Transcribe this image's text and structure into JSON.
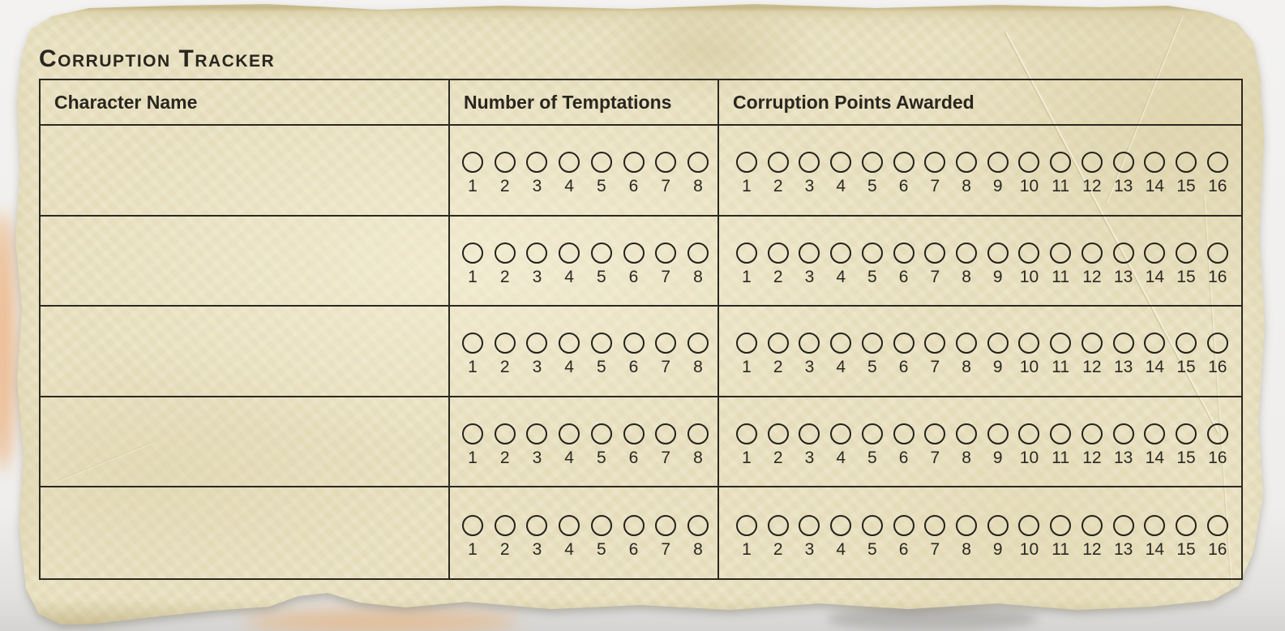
{
  "page": {
    "title": "Corruption Tracker"
  },
  "table": {
    "headers": {
      "character_name": "Character Name",
      "temptations": "Number of Temptations",
      "corruption_points": "Corruption Points Awarded"
    },
    "temptation_scale": [
      "1",
      "2",
      "3",
      "4",
      "5",
      "6",
      "7",
      "8"
    ],
    "corruption_scale": [
      "1",
      "2",
      "3",
      "4",
      "5",
      "6",
      "7",
      "8",
      "9",
      "10",
      "11",
      "12",
      "13",
      "14",
      "15",
      "16"
    ],
    "rows": [
      {
        "character_name": ""
      },
      {
        "character_name": ""
      },
      {
        "character_name": ""
      },
      {
        "character_name": ""
      },
      {
        "character_name": ""
      }
    ]
  },
  "colors": {
    "paper": "#e9e1c1",
    "ink": "#29261f",
    "table_line": "#2b2821",
    "background": "#f0efec",
    "peek_orange": "#e9964a",
    "peek_gray": "#b0aeab"
  }
}
